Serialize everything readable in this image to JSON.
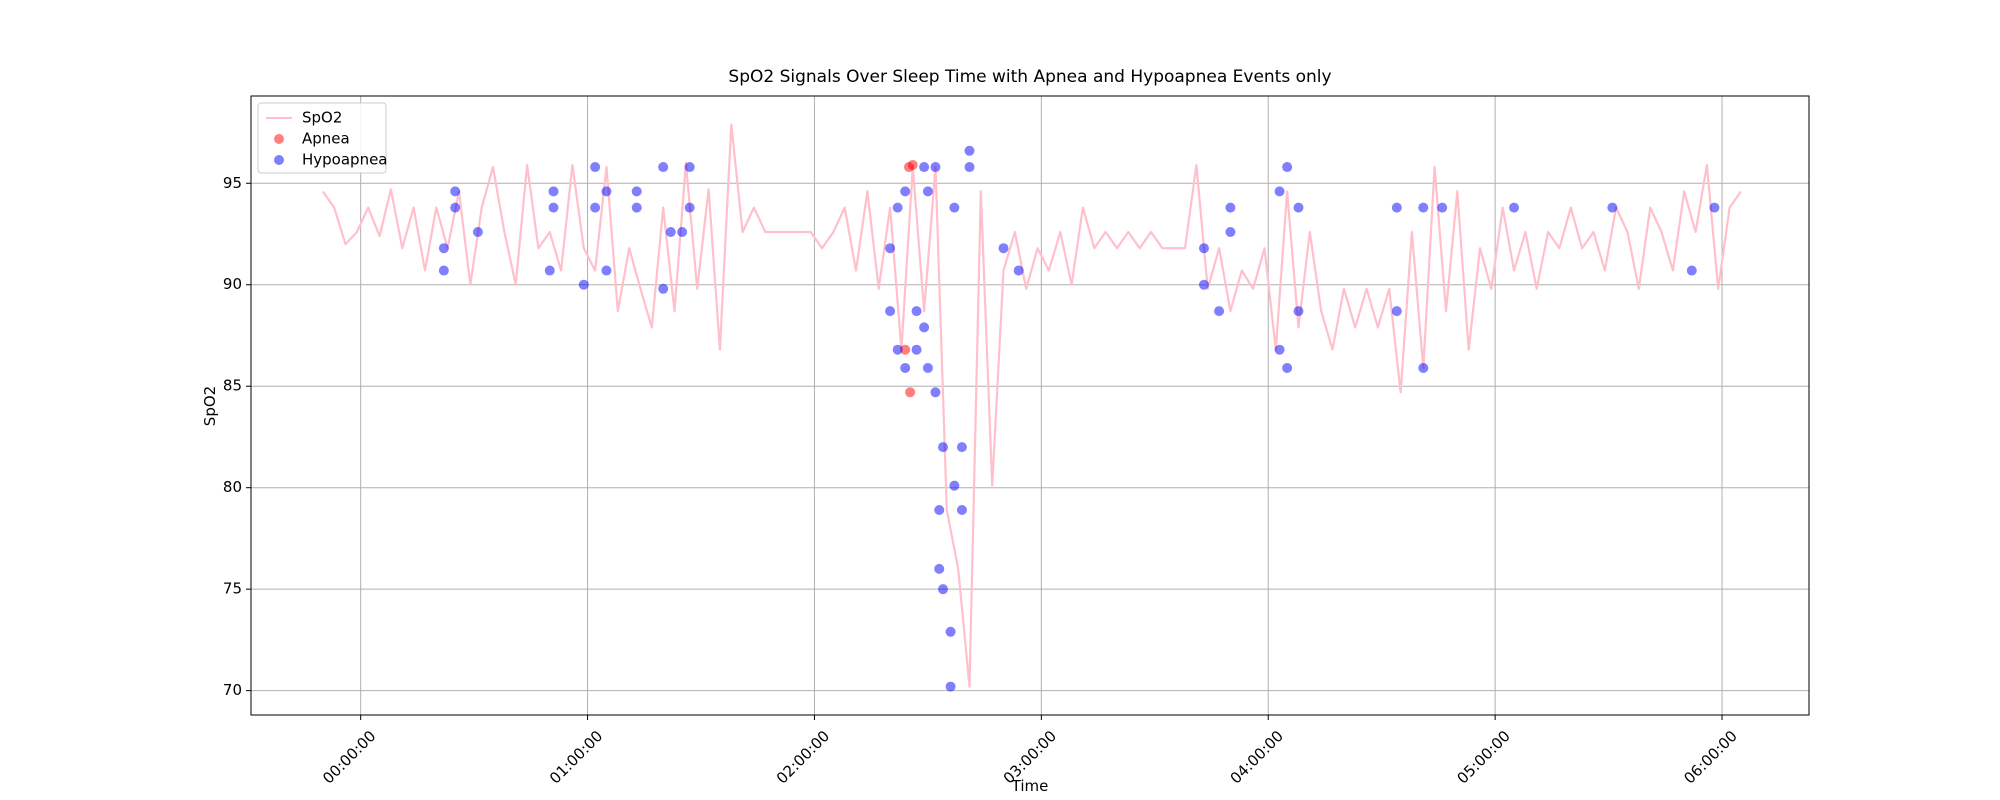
{
  "chart_data": {
    "type": "line",
    "title": "SpO2 Signals Over Sleep Time with Apnea and Hypoapnea Events only",
    "x_label": "Time",
    "y_label": "SpO2",
    "xlim": [
      -29,
      383
    ],
    "ylim": [
      68.8,
      99.3
    ],
    "xticks": [
      {
        "value": 0,
        "label": "00:00:00"
      },
      {
        "value": 60,
        "label": "01:00:00"
      },
      {
        "value": 120,
        "label": "02:00:00"
      },
      {
        "value": 180,
        "label": "03:00:00"
      },
      {
        "value": 240,
        "label": "04:00:00"
      },
      {
        "value": 300,
        "label": "05:00:00"
      },
      {
        "value": 360,
        "label": "06:00:00"
      }
    ],
    "yticks": [
      70,
      75,
      80,
      85,
      90,
      95
    ],
    "grid": true,
    "legend": "upper-left",
    "series": [
      {
        "name": "SpO2",
        "type": "line",
        "color": "#ffc0cb",
        "x": [
          -10,
          -7,
          -4,
          -1,
          2,
          5,
          8,
          11,
          14,
          17,
          20,
          23,
          26,
          29,
          32,
          35,
          38,
          41,
          44,
          47,
          50,
          53,
          56,
          59,
          62,
          65,
          68,
          71,
          74,
          77,
          80,
          83,
          86,
          89,
          92,
          95,
          98,
          101,
          104,
          107,
          110,
          113,
          116,
          119,
          122,
          125,
          128,
          131,
          134,
          137,
          140,
          143,
          146,
          149,
          152,
          155,
          158,
          161,
          164,
          167,
          170,
          173,
          176,
          179,
          182,
          185,
          188,
          191,
          194,
          197,
          200,
          203,
          206,
          209,
          212,
          215,
          218,
          221,
          224,
          227,
          230,
          233,
          236,
          239,
          242,
          245,
          248,
          251,
          254,
          257,
          260,
          263,
          266,
          269,
          272,
          275,
          278,
          281,
          284,
          287,
          290,
          293,
          296,
          299,
          302,
          305,
          308,
          311,
          314,
          317,
          320,
          323,
          326,
          329,
          332,
          335,
          338,
          341,
          344,
          347,
          350,
          353,
          356,
          359,
          362,
          365
        ],
        "values": [
          94.6,
          93.8,
          92.0,
          92.6,
          93.8,
          92.4,
          94.7,
          91.8,
          93.8,
          90.7,
          93.8,
          91.8,
          94.6,
          90.0,
          93.8,
          95.8,
          92.6,
          90.0,
          95.9,
          91.8,
          92.6,
          90.7,
          95.9,
          91.8,
          90.7,
          95.8,
          88.7,
          91.8,
          89.8,
          87.9,
          93.8,
          88.7,
          96.0,
          89.8,
          94.7,
          86.8,
          97.9,
          92.6,
          93.8,
          92.6,
          92.6,
          92.6,
          92.6,
          92.6,
          91.8,
          92.6,
          93.8,
          90.7,
          94.6,
          89.8,
          93.8,
          86.8,
          95.8,
          88.7,
          95.8,
          78.9,
          76.0,
          70.2,
          94.6,
          80.1,
          90.7,
          92.6,
          89.8,
          91.8,
          90.7,
          92.6,
          90.0,
          93.8,
          91.8,
          92.6,
          91.8,
          92.6,
          91.8,
          92.6,
          91.8,
          91.8,
          91.8,
          95.9,
          89.8,
          91.8,
          88.7,
          90.7,
          89.8,
          91.8,
          86.8,
          94.6,
          87.9,
          92.6,
          88.7,
          86.8,
          89.8,
          87.9,
          89.8,
          87.9,
          89.8,
          84.7,
          92.6,
          85.9,
          95.8,
          88.7,
          94.6,
          86.8,
          91.8,
          89.8,
          93.8,
          90.7,
          92.6,
          89.8,
          92.6,
          91.8,
          93.8,
          91.8,
          92.6,
          90.7,
          93.8,
          92.6,
          89.8,
          93.8,
          92.6,
          90.7,
          94.6,
          92.6,
          95.9,
          89.8,
          93.8,
          94.6
        ]
      },
      {
        "name": "Apnea",
        "type": "scatter",
        "color": "#ff0000",
        "x": [
          144,
          145,
          145.3,
          146
        ],
        "values": [
          86.8,
          95.8,
          84.7,
          95.9
        ]
      },
      {
        "name": "Hypoapnea",
        "type": "scatter",
        "color": "#0000ff",
        "x": [
          22,
          22,
          25,
          25,
          31,
          50,
          51,
          51,
          59,
          62,
          62,
          65,
          65,
          73,
          73,
          80,
          80,
          82,
          85,
          87,
          87,
          140,
          140,
          142,
          142,
          144,
          144,
          147,
          147,
          149,
          149,
          150,
          150,
          152,
          152,
          153,
          153,
          154,
          154,
          156,
          156,
          157,
          157,
          159,
          159,
          161,
          161,
          170,
          174,
          223,
          223,
          227,
          230,
          230,
          243,
          243,
          245,
          245,
          248,
          248,
          274,
          274,
          281,
          281,
          286,
          305,
          331,
          352,
          358
        ],
        "values": [
          90.7,
          91.8,
          94.6,
          93.8,
          92.6,
          90.7,
          93.8,
          94.6,
          90.0,
          95.8,
          93.8,
          94.6,
          90.7,
          94.6,
          93.8,
          95.8,
          89.8,
          92.6,
          92.6,
          95.8,
          93.8,
          88.7,
          91.8,
          86.8,
          93.8,
          94.6,
          85.9,
          86.8,
          88.7,
          95.8,
          87.9,
          85.9,
          94.6,
          84.7,
          95.8,
          78.9,
          76.0,
          75.0,
          82.0,
          70.2,
          72.9,
          80.1,
          93.8,
          78.9,
          82.0,
          96.6,
          95.8,
          91.8,
          90.7,
          90.0,
          91.8,
          88.7,
          93.8,
          92.6,
          86.8,
          94.6,
          95.8,
          85.9,
          93.8,
          88.7,
          88.7,
          93.8,
          85.9,
          93.8,
          93.8,
          93.8,
          93.8,
          90.7,
          93.8
        ]
      }
    ]
  }
}
